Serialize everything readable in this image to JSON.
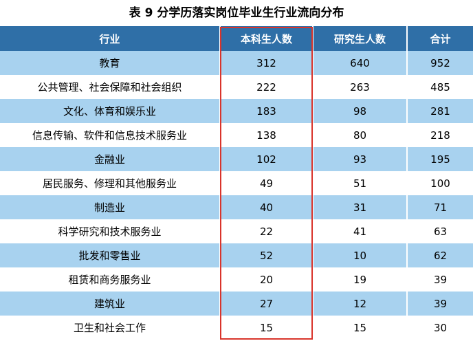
{
  "title": "表 9 分学历落实岗位毕业生行业流向分布",
  "columns": [
    "行业",
    "本科生人数",
    "研究生人数",
    "合计"
  ],
  "rows": [
    [
      "教育",
      "312",
      "640",
      "952"
    ],
    [
      "公共管理、社会保障和社会组织",
      "222",
      "263",
      "485"
    ],
    [
      "文化、体育和娱乐业",
      "183",
      "98",
      "281"
    ],
    [
      "信息传输、软件和信息技术服务业",
      "138",
      "80",
      "218"
    ],
    [
      "金融业",
      "102",
      "93",
      "195"
    ],
    [
      "居民服务、修理和其他服务业",
      "49",
      "51",
      "100"
    ],
    [
      "制造业",
      "40",
      "31",
      "71"
    ],
    [
      "科学研究和技术服务业",
      "22",
      "41",
      "63"
    ],
    [
      "批发和零售业",
      "52",
      "10",
      "62"
    ],
    [
      "租赁和商务服务业",
      "20",
      "19",
      "39"
    ],
    [
      "建筑业",
      "27",
      "12",
      "39"
    ],
    [
      "卫生和社会工作",
      "15",
      "15",
      "30"
    ]
  ],
  "colors": {
    "header_bg": "#2f6fa7",
    "stripe_bg": "#a8d2ef",
    "highlight_border": "#d9342b"
  }
}
